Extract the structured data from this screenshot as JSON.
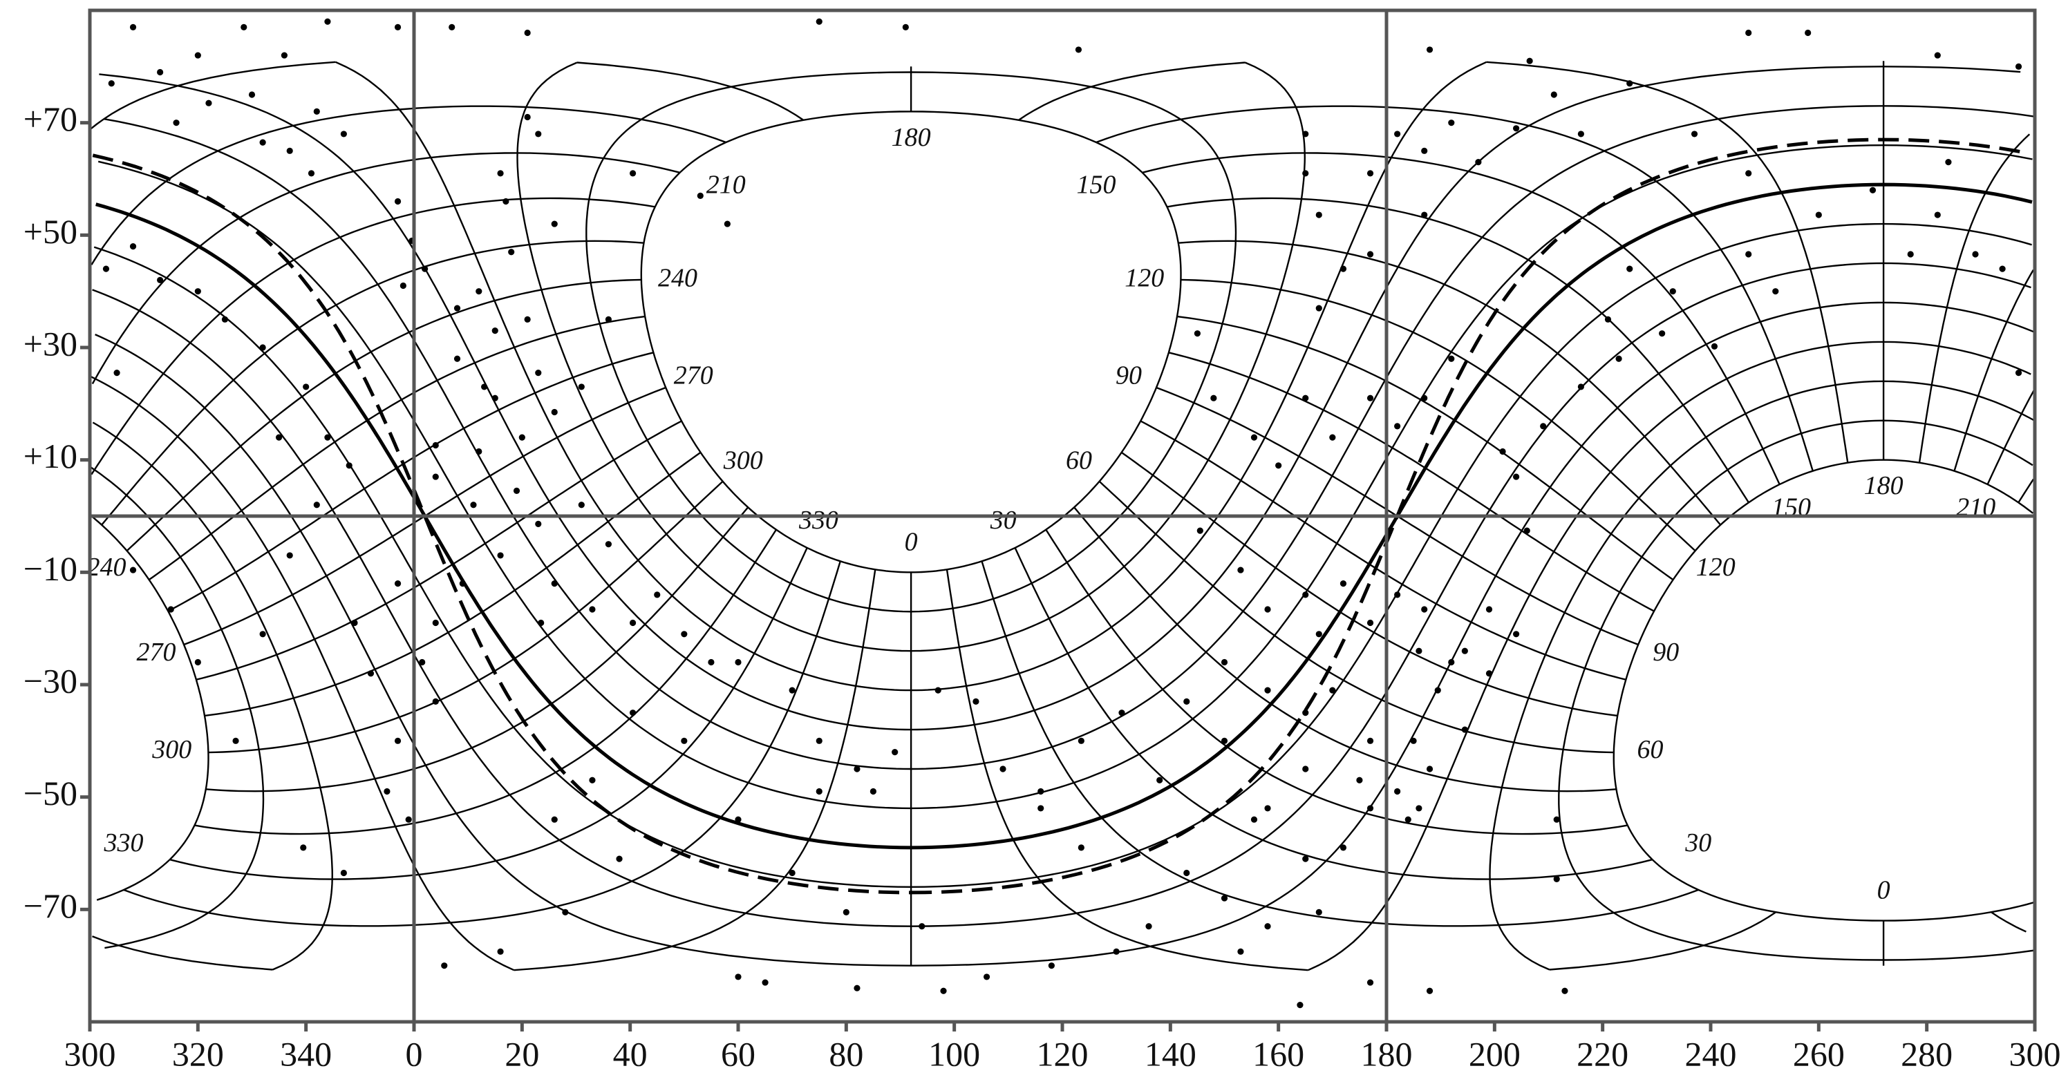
{
  "chart_data": {
    "type": "scatter",
    "xlim": [
      300,
      660
    ],
    "ylim": [
      -90,
      90
    ],
    "xticks": [
      300,
      320,
      340,
      {
        "value": 360,
        "label": "0"
      },
      {
        "value": 380,
        "label": "20"
      },
      {
        "value": 400,
        "label": "40"
      },
      {
        "value": 420,
        "label": "60"
      },
      {
        "value": 440,
        "label": "80"
      },
      {
        "value": 460,
        "label": "100"
      },
      {
        "value": 480,
        "label": "120"
      },
      {
        "value": 500,
        "label": "140"
      },
      {
        "value": 520,
        "label": "160"
      },
      {
        "value": 540,
        "label": "180"
      },
      {
        "value": 560,
        "label": "200"
      },
      {
        "value": 580,
        "label": "220"
      },
      {
        "value": 600,
        "label": "240"
      },
      {
        "value": 620,
        "label": "260"
      },
      {
        "value": 640,
        "label": "280"
      },
      {
        "value": 660,
        "label": "300"
      }
    ],
    "yticks": [
      {
        "value": 70,
        "label": "+70"
      },
      {
        "value": 50,
        "label": "+50"
      },
      {
        "value": 30,
        "label": "+30"
      },
      {
        "value": 10,
        "label": "+10"
      },
      {
        "value": -10,
        "label": "−10"
      },
      {
        "value": -30,
        "label": "−30"
      },
      {
        "value": -50,
        "label": "−50"
      },
      {
        "value": -70,
        "label": "−70"
      }
    ],
    "vlines": [
      360,
      540
    ],
    "hlines": [
      0
    ],
    "color": "#000000",
    "pole_labels": [
      0,
      30,
      60,
      90,
      120,
      150,
      180,
      210,
      240,
      270,
      300,
      330
    ],
    "antipole_labels": [
      0,
      30,
      60,
      90,
      120,
      150,
      180,
      210,
      240,
      270,
      300,
      330
    ],
    "x": [
      308,
      328.5,
      344,
      357,
      367,
      381,
      435,
      451,
      483,
      548,
      566.5,
      607,
      618,
      642,
      657,
      304,
      313,
      320,
      316,
      322,
      330,
      336,
      342,
      332,
      337,
      347,
      341,
      308,
      303,
      313,
      320,
      325,
      305,
      332,
      340,
      344,
      348,
      335,
      357,
      359.6,
      362,
      358,
      368,
      372,
      375,
      368,
      373,
      375,
      381,
      376,
      383,
      381,
      377,
      386,
      378,
      383,
      386,
      391,
      380,
      372,
      364,
      396,
      400.5,
      413,
      418,
      364,
      371,
      379,
      383,
      391,
      396,
      376,
      386,
      393,
      400.5,
      405,
      410,
      415,
      383.5,
      369,
      364,
      357,
      349,
      352,
      361.5,
      364,
      357,
      355,
      359,
      347,
      339.5,
      327,
      320,
      315,
      308,
      332,
      337,
      342,
      420,
      430,
      435,
      442,
      449,
      457,
      464,
      469,
      476,
      483.5,
      491,
      498,
      503,
      510,
      518,
      525,
      410,
      400.5,
      393,
      386,
      420,
      435,
      445,
      430,
      440,
      454,
      420,
      425,
      442,
      458,
      466,
      478,
      490,
      398,
      388,
      376,
      365.6,
      505.5,
      513,
      518,
      525,
      527.5,
      532,
      537,
      510,
      518,
      525,
      515.5,
      525,
      527.5,
      518,
      532,
      537,
      544,
      548,
      554.5,
      559,
      564,
      552,
      547,
      566,
      564,
      561.5,
      569,
      576,
      583,
      591,
      552,
      547,
      542,
      537,
      530,
      525,
      520,
      515.5,
      508,
      505,
      527.5,
      532,
      527.5,
      525,
      525,
      537,
      542,
      547,
      552,
      557,
      547,
      537,
      564,
      571,
      576,
      585,
      597,
      607,
      620,
      630,
      642,
      649,
      654,
      644,
      657,
      585,
      593,
      581,
      607,
      612,
      637,
      600.7,
      542,
      546,
      549.5,
      545,
      542,
      546,
      554.5,
      559,
      537,
      535,
      530,
      571.5,
      571.5,
      573,
      548,
      537,
      524,
      513,
      496,
      503,
      510,
      483.5,
      476
    ],
    "y": [
      87,
      87,
      88,
      87,
      87,
      86,
      88,
      87,
      83,
      83,
      81,
      86,
      86,
      82,
      80,
      77,
      79,
      82,
      70,
      73.5,
      75,
      82,
      72,
      66.5,
      65,
      68,
      61,
      48,
      44,
      42,
      40,
      35,
      25.5,
      30,
      23,
      14,
      9,
      14,
      56,
      49,
      44,
      41,
      37,
      40,
      33,
      28,
      23,
      21,
      35,
      61,
      68,
      71,
      56,
      52,
      47,
      25.5,
      18.5,
      23,
      14,
      11.5,
      12.6,
      35,
      61,
      57,
      52,
      7,
      2,
      4.5,
      -1.4,
      2,
      -5,
      -7,
      -12,
      -16.6,
      -19,
      -14,
      -21,
      -26,
      -19,
      -12,
      -19,
      -12,
      -19,
      -28,
      -26,
      -33,
      -40,
      -49,
      -54,
      -63.5,
      -59,
      -40,
      -26,
      -16.6,
      -9.6,
      -21,
      -7,
      2,
      -26,
      -31,
      -40,
      -45,
      -42,
      -31,
      -33,
      -45,
      -49,
      -40,
      -35,
      -47,
      -33,
      -40,
      -52,
      -45,
      -40,
      -35,
      -47,
      -54,
      -54,
      -49,
      -49,
      -63.5,
      -70.5,
      -73,
      -82,
      -83,
      -84,
      -84.5,
      -82,
      -80,
      -77.5,
      -61,
      -70.5,
      -77.5,
      -80,
      -2.6,
      -9.6,
      -16.6,
      -14,
      -21,
      -12,
      -19,
      -26,
      -31,
      -35,
      -54,
      -61,
      -70.5,
      -73,
      -59,
      -52,
      -54,
      -45,
      -38,
      -28,
      -21,
      -26,
      -16.6,
      -2.6,
      7,
      11.5,
      16,
      23,
      28,
      32.5,
      28,
      21,
      16,
      21,
      14,
      21,
      9,
      14,
      21,
      32.5,
      37,
      44,
      53.6,
      61,
      68,
      61,
      68,
      65,
      70,
      63,
      53.6,
      46.6,
      69,
      75,
      68,
      77,
      68,
      61,
      53.6,
      58,
      53.6,
      46.6,
      44,
      63,
      25.5,
      44,
      40,
      35,
      46.6,
      40,
      46.6,
      30.2,
      -14,
      -24,
      -31,
      -40,
      -49,
      -52,
      -24,
      -16.6,
      -40,
      -47,
      -31,
      -54,
      -64.6,
      -84.5,
      -84.5,
      -83,
      -87,
      -77.5,
      -73,
      -63.5,
      -68,
      -59,
      -52
    ]
  }
}
